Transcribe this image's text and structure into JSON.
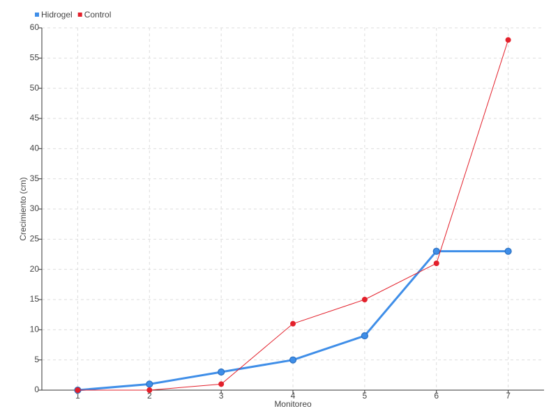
{
  "chart_data": {
    "type": "line",
    "x_label": "Monitoreo",
    "y_label": "Crecimiento (cm)",
    "x": [
      1,
      2,
      3,
      4,
      5,
      6,
      7
    ],
    "xlim": [
      0.5,
      7.5
    ],
    "xticks": [
      1,
      2,
      3,
      4,
      5,
      6,
      7
    ],
    "ylim": [
      0,
      60
    ],
    "yticks": [
      0,
      5,
      10,
      15,
      20,
      25,
      30,
      35,
      40,
      45,
      50,
      55,
      60
    ],
    "grid": true,
    "legend": "top-left",
    "series": [
      {
        "name": "Hidrogel",
        "color": "#3f8ee8",
        "values": [
          0,
          1,
          3,
          5,
          9,
          23,
          23
        ]
      },
      {
        "name": "Control",
        "color": "#e3202b",
        "values": [
          0,
          0,
          1,
          11,
          15,
          21,
          58
        ]
      }
    ]
  }
}
